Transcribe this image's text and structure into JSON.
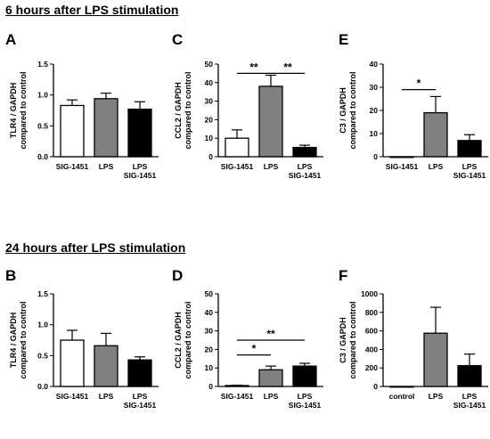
{
  "sections": [
    {
      "title": "6 hours after LPS stimulation"
    },
    {
      "title": "24 hours after LPS stimulation"
    }
  ],
  "chart_data": [
    {
      "panel": "A",
      "type": "bar",
      "ylabel": [
        "TLR4 / GAPDH",
        "compared to control"
      ],
      "categories": [
        [
          "SIG-1451"
        ],
        [
          "LPS"
        ],
        [
          "LPS",
          "SIG-1451"
        ]
      ],
      "values": [
        0.83,
        0.94,
        0.77
      ],
      "errors": [
        0.09,
        0.09,
        0.12
      ],
      "fills": [
        "#ffffff",
        "#808080",
        "#000000"
      ],
      "ylim": [
        0,
        1.5
      ],
      "yticks": [
        0,
        0.5,
        1.0,
        1.5
      ],
      "ytick_labels": [
        "0.0",
        "0.5",
        "1.0",
        "1.5"
      ],
      "significance": []
    },
    {
      "panel": "C",
      "type": "bar",
      "ylabel": [
        "CCL2 / GAPDH",
        "compared to control"
      ],
      "categories": [
        [
          "SIG-1451"
        ],
        [
          "LPS"
        ],
        [
          "LPS",
          "SIG-1451"
        ]
      ],
      "values": [
        10,
        38,
        5
      ],
      "errors": [
        4.5,
        6,
        1.2
      ],
      "fills": [
        "#ffffff",
        "#808080",
        "#000000"
      ],
      "ylim": [
        0,
        50
      ],
      "yticks": [
        0,
        10,
        20,
        30,
        40,
        50
      ],
      "ytick_labels": [
        "0",
        "10",
        "20",
        "30",
        "40",
        "50"
      ],
      "significance": [
        {
          "from": 0,
          "to": 1,
          "label": "**",
          "y": 45
        },
        {
          "from": 1,
          "to": 2,
          "label": "**",
          "y": 45
        }
      ]
    },
    {
      "panel": "E",
      "type": "bar",
      "ylabel": [
        "C3 / GAPDH",
        "compared to control"
      ],
      "categories": [
        [
          "SIG-1451"
        ],
        [
          "LPS"
        ],
        [
          "LPS",
          "SIG-1451"
        ]
      ],
      "values": [
        0,
        19,
        7
      ],
      "errors": [
        0,
        7,
        2.5
      ],
      "fills": [
        "#ffffff",
        "#808080",
        "#000000"
      ],
      "ylim": [
        0,
        40
      ],
      "yticks": [
        0,
        10,
        20,
        30,
        40
      ],
      "ytick_labels": [
        "0",
        "10",
        "20",
        "30",
        "40"
      ],
      "significance": [
        {
          "from": 0,
          "to": 1,
          "label": "*",
          "y": 29
        }
      ]
    },
    {
      "panel": "B",
      "type": "bar",
      "ylabel": [
        "TLR4 / GAPDH",
        "compared to control"
      ],
      "categories": [
        [
          "SIG-1451"
        ],
        [
          "LPS"
        ],
        [
          "LPS",
          "SIG-1451"
        ]
      ],
      "values": [
        0.75,
        0.66,
        0.43
      ],
      "errors": [
        0.16,
        0.2,
        0.05
      ],
      "fills": [
        "#ffffff",
        "#808080",
        "#000000"
      ],
      "ylim": [
        0,
        1.5
      ],
      "yticks": [
        0,
        0.5,
        1.0,
        1.5
      ],
      "ytick_labels": [
        "0.0",
        "0.5",
        "1.0",
        "1.5"
      ],
      "significance": []
    },
    {
      "panel": "D",
      "type": "bar",
      "ylabel": [
        "CCL2 / GAPDH",
        "compared to control"
      ],
      "categories": [
        [
          "SIG-1451"
        ],
        [
          "LPS"
        ],
        [
          "LPS",
          "SIG-1451"
        ]
      ],
      "values": [
        0.5,
        9,
        11
      ],
      "errors": [
        0.2,
        2,
        1.5
      ],
      "fills": [
        "#ffffff",
        "#808080",
        "#000000"
      ],
      "ylim": [
        0,
        50
      ],
      "yticks": [
        0,
        10,
        20,
        30,
        40,
        50
      ],
      "ytick_labels": [
        "0",
        "10",
        "20",
        "30",
        "40",
        "50"
      ],
      "significance": [
        {
          "from": 0,
          "to": 1,
          "label": "*",
          "y": 17
        },
        {
          "from": 0,
          "to": 2,
          "label": "**",
          "y": 25
        }
      ]
    },
    {
      "panel": "F",
      "type": "bar",
      "ylabel": [
        "C3 / GAPDH",
        "compared to control"
      ],
      "categories": [
        [
          "control"
        ],
        [
          "LPS"
        ],
        [
          "LPS",
          "SIG-1451"
        ]
      ],
      "values": [
        0,
        575,
        225
      ],
      "errors": [
        0,
        280,
        125
      ],
      "fills": [
        "#ffffff",
        "#808080",
        "#000000"
      ],
      "ylim": [
        0,
        1000
      ],
      "yticks": [
        0,
        200,
        400,
        600,
        800,
        1000
      ],
      "ytick_labels": [
        "0",
        "200",
        "400",
        "600",
        "800",
        "1000"
      ],
      "significance": []
    }
  ]
}
